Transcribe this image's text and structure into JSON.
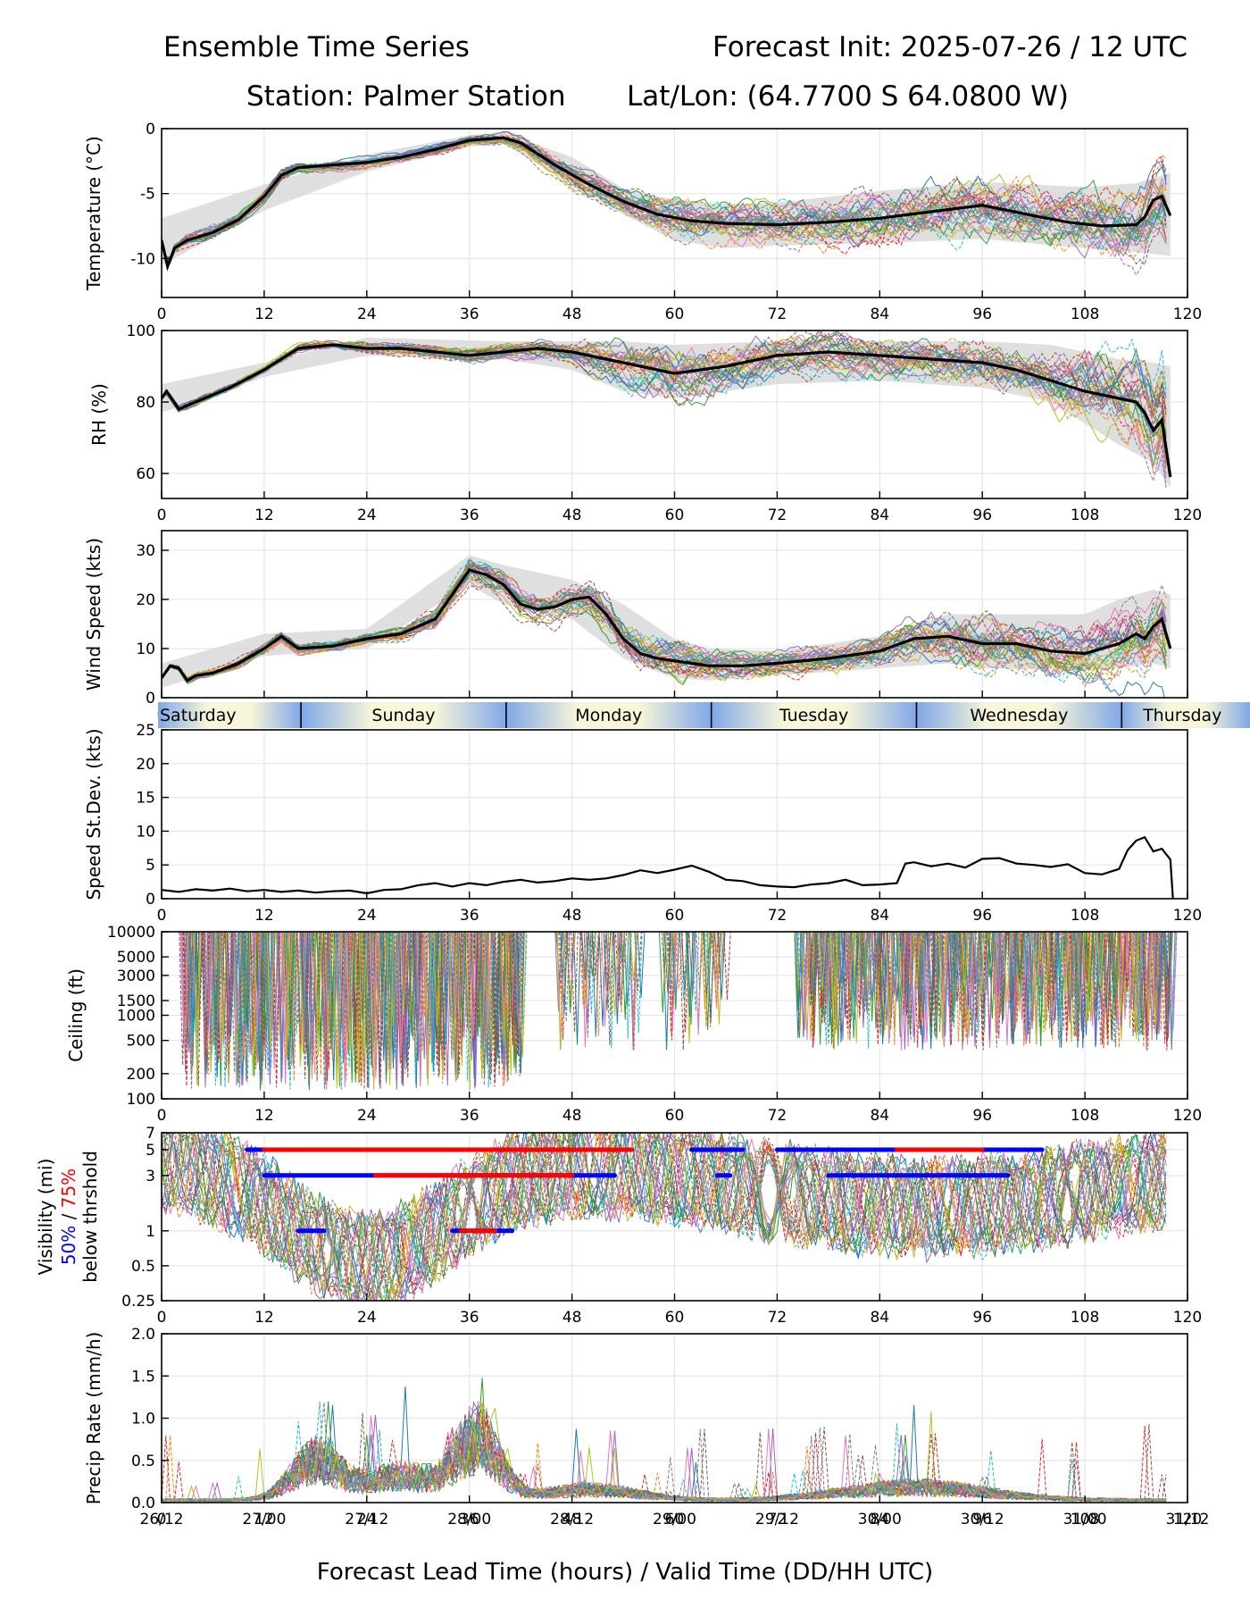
{
  "header": {
    "title_left": "Ensemble Time Series",
    "title_right": "Forecast Init: 2025-07-26 / 12 UTC",
    "station": "Station: Palmer Station",
    "latlon": "Lat/Lon: (64.7700 S 64.0800 W)"
  },
  "x_axis": {
    "ticks": [
      0,
      12,
      24,
      36,
      48,
      60,
      72,
      84,
      96,
      108,
      120
    ],
    "valid_time_labels": [
      "26/12",
      "27/00",
      "27/12",
      "28/00",
      "28/12",
      "29/00",
      "29/12",
      "30/00",
      "30/12",
      "31/00",
      "31/12"
    ],
    "xlabel": "Forecast Lead Time (hours) / Valid Time (DD/HH UTC)",
    "range": [
      0,
      120
    ]
  },
  "day_band": {
    "days": [
      "Saturday",
      "Sunday",
      "Monday",
      "Tuesday",
      "Wednesday",
      "Thursday"
    ],
    "boundaries_hours": [
      16.3,
      40.3,
      64.3,
      88.3,
      112.3
    ]
  },
  "colors": {
    "ensemble_palette": [
      "#1f77b4",
      "#ff7f0e",
      "#2ca02c",
      "#d62728",
      "#9467bd",
      "#8c564b",
      "#e377c2",
      "#7f7f7f",
      "#bcbd22",
      "#17becf"
    ],
    "mean_line": "#000000",
    "spread_fill": "#d9d9d9",
    "vis_50": "#0000ff",
    "vis_75": "#ff0000",
    "day_band_blue": "#7fa8e8",
    "day_band_cream": "#f8f6d8"
  },
  "chart_data": [
    {
      "id": "temperature",
      "type": "line",
      "ylabel": "Temperature (°C)",
      "ylim": [
        -13,
        0
      ],
      "yticks": [
        0,
        -5,
        -10
      ],
      "grid": true,
      "mean": {
        "x": [
          0,
          0.7,
          1.5,
          3,
          6,
          9,
          12,
          14,
          16,
          20,
          24,
          28,
          32,
          36,
          40,
          42,
          46,
          50,
          54,
          58,
          62,
          66,
          72,
          78,
          84,
          90,
          96,
          102,
          106,
          110,
          114,
          115,
          116,
          117,
          118
        ],
        "y": [
          -8.6,
          -10.6,
          -9.2,
          -8.6,
          -8.0,
          -7.0,
          -5.2,
          -3.6,
          -3.0,
          -2.8,
          -2.6,
          -2.2,
          -1.6,
          -0.9,
          -0.7,
          -1.1,
          -2.8,
          -4.3,
          -5.6,
          -6.6,
          -7.1,
          -7.3,
          -7.4,
          -7.2,
          -6.9,
          -6.4,
          -5.9,
          -6.7,
          -7.2,
          -7.5,
          -7.4,
          -6.8,
          -5.5,
          -5.2,
          -6.7
        ]
      },
      "spread": {
        "x": [
          0,
          12,
          24,
          36,
          40,
          48,
          54,
          60,
          66,
          72,
          84,
          96,
          108,
          114,
          118
        ],
        "lower": [
          -10.5,
          -6.3,
          -3.3,
          -1.4,
          -1.2,
          -4.2,
          -6.6,
          -8.6,
          -9.2,
          -9.0,
          -8.8,
          -8.5,
          -9.2,
          -9.5,
          -9.8
        ],
        "upper": [
          -6.9,
          -4.3,
          -2.0,
          -0.5,
          -0.3,
          -2.2,
          -4.6,
          -5.5,
          -5.8,
          -5.7,
          -4.8,
          -4.1,
          -4.5,
          -4.2,
          -3.4
        ]
      }
    },
    {
      "id": "rh",
      "type": "line",
      "ylabel": "RH (%)",
      "ylim": [
        53,
        100
      ],
      "yticks": [
        100,
        80,
        60
      ],
      "grid": true,
      "mean": {
        "x": [
          0,
          0.6,
          2,
          4,
          8,
          12,
          16,
          20,
          24,
          28,
          32,
          36,
          40,
          44,
          48,
          52,
          56,
          60,
          66,
          72,
          78,
          84,
          90,
          96,
          100,
          104,
          108,
          112,
          114,
          115,
          116,
          117,
          118
        ],
        "y": [
          81,
          83,
          78,
          80,
          84,
          89,
          95,
          96,
          95,
          95,
          94,
          93,
          94,
          95,
          94,
          92,
          90,
          88,
          90,
          93,
          94,
          93,
          92,
          91,
          89,
          86,
          83,
          81,
          80,
          77,
          72,
          75,
          59
        ]
      },
      "spread": {
        "x": [
          0,
          12,
          24,
          40,
          48,
          54,
          60,
          72,
          84,
          96,
          104,
          108,
          112,
          116,
          118
        ],
        "lower": [
          77,
          87,
          93,
          92,
          89,
          83,
          81,
          85,
          86,
          84,
          80,
          74,
          68,
          63,
          56
        ],
        "upper": [
          85,
          91,
          98,
          97,
          97,
          97,
          96,
          97,
          97,
          97,
          96,
          94,
          92,
          91,
          90
        ]
      }
    },
    {
      "id": "wind_speed",
      "type": "line",
      "ylabel": "Wind Speed (kts)",
      "ylim": [
        0,
        34
      ],
      "yticks": [
        0,
        10,
        20,
        30
      ],
      "grid": true,
      "mean": {
        "x": [
          0,
          1,
          2,
          3,
          4,
          6,
          9,
          12,
          14,
          16,
          20,
          24,
          28,
          32,
          34,
          36,
          38,
          40,
          42,
          44,
          46,
          48,
          50,
          52,
          54,
          56,
          58,
          60,
          62,
          64,
          68,
          72,
          78,
          84,
          88,
          92,
          96,
          100,
          104,
          108,
          112,
          114,
          115,
          116,
          117,
          118
        ],
        "y": [
          4,
          6.5,
          6,
          3.5,
          4.5,
          5,
          7,
          10,
          12.5,
          10,
          10.5,
          12,
          13,
          16,
          21,
          26,
          25,
          23,
          19,
          18,
          18.5,
          20,
          20.5,
          17,
          12,
          9,
          8,
          7.5,
          7,
          6.5,
          6.5,
          7,
          8,
          9.5,
          12,
          12.5,
          11,
          11,
          9.5,
          9,
          11,
          13,
          12,
          14.5,
          16,
          10
        ]
      },
      "spread": {
        "x": [
          0,
          12,
          24,
          36,
          40,
          48,
          54,
          60,
          64,
          72,
          84,
          92,
          96,
          108,
          112,
          116,
          118
        ],
        "lower": [
          2,
          8.5,
          10,
          23,
          19,
          16,
          8,
          4,
          3.5,
          4.5,
          6,
          7,
          6,
          5.5,
          6,
          7,
          6
        ],
        "upper": [
          7,
          13,
          14,
          29,
          27,
          24,
          19,
          12,
          10,
          9.5,
          12.5,
          17,
          17,
          17,
          20,
          22,
          21
        ]
      }
    },
    {
      "id": "speed_stdev",
      "type": "line",
      "ylabel": "Speed St.Dev. (kts)",
      "ylim": [
        0,
        25
      ],
      "yticks": [
        0,
        5,
        10,
        15,
        20,
        25
      ],
      "grid": true,
      "series": [
        {
          "name": "",
          "x": [
            0,
            2,
            4,
            6,
            8,
            10,
            12,
            14,
            16,
            18,
            20,
            22,
            24,
            26,
            28,
            30,
            32,
            34,
            36,
            38,
            40,
            42,
            44,
            46,
            48,
            50,
            52,
            54,
            56,
            58,
            60,
            62,
            64,
            66,
            68,
            70,
            72,
            74,
            76,
            78,
            80,
            82,
            84,
            86,
            87,
            88,
            90,
            92,
            94,
            96,
            98,
            100,
            102,
            104,
            106,
            108,
            110,
            112,
            113,
            114,
            115,
            116,
            117,
            118,
            118.3
          ],
          "y": [
            1.3,
            1.0,
            1.4,
            1.2,
            1.5,
            1.1,
            1.3,
            1.0,
            1.2,
            0.9,
            1.1,
            1.2,
            0.8,
            1.3,
            1.4,
            2.0,
            2.3,
            1.8,
            2.3,
            2.0,
            2.5,
            2.8,
            2.4,
            2.6,
            3.0,
            2.8,
            3.0,
            3.5,
            4.2,
            3.8,
            4.3,
            4.9,
            4.0,
            2.8,
            2.6,
            2.0,
            1.8,
            1.7,
            2.1,
            2.3,
            2.8,
            2.0,
            2.1,
            2.3,
            5.2,
            5.4,
            4.8,
            5.2,
            4.6,
            5.9,
            6.0,
            5.2,
            5.0,
            4.7,
            5.1,
            3.8,
            3.6,
            4.4,
            7.2,
            8.6,
            9.1,
            7.0,
            7.4,
            5.8,
            0
          ]
        }
      ]
    },
    {
      "id": "ceiling",
      "type": "line",
      "ylabel": "Ceiling (ft)",
      "yscale": "log",
      "ylim": [
        100,
        10000
      ],
      "yticks": [
        100,
        200,
        500,
        1000,
        1500,
        3000,
        5000,
        10000
      ],
      "grid": true,
      "note_ranges": [
        [
          2,
          42
        ],
        [
          46,
          56
        ],
        [
          58,
          66
        ],
        [
          74,
          118
        ]
      ]
    },
    {
      "id": "visibility",
      "type": "line",
      "ylabel": "Visibility (mi)",
      "ylabel_legend_50": "50%",
      "ylabel_legend_sep": " / ",
      "ylabel_legend_75": "75%",
      "ylabel_sub": "below thrshold",
      "yscale": "log",
      "ylim": [
        0.25,
        7
      ],
      "yticks": [
        0.25,
        0.5,
        1,
        3,
        5,
        7
      ],
      "grid": true,
      "threshold_bars": [
        {
          "level": 5,
          "color": "blue",
          "x0": 10,
          "x1": 55
        },
        {
          "level": 5,
          "color": "red",
          "x0": 12,
          "x1": 55
        },
        {
          "level": 5,
          "color": "blue",
          "x0": 62,
          "x1": 68
        },
        {
          "level": 5,
          "color": "blue",
          "x0": 72,
          "x1": 103
        },
        {
          "level": 5,
          "color": "red",
          "x0": 86,
          "x1": 96
        },
        {
          "level": 3,
          "color": "blue",
          "x0": 12,
          "x1": 53
        },
        {
          "level": 3,
          "color": "red",
          "x0": 25,
          "x1": 48
        },
        {
          "level": 3,
          "color": "blue",
          "x0": 65,
          "x1": 66.5
        },
        {
          "level": 3,
          "color": "blue",
          "x0": 78,
          "x1": 99
        },
        {
          "level": 1,
          "color": "blue",
          "x0": 16,
          "x1": 19
        },
        {
          "level": 1,
          "color": "blue",
          "x0": 34,
          "x1": 41
        },
        {
          "level": 1,
          "color": "red",
          "x0": 35,
          "x1": 39
        }
      ]
    },
    {
      "id": "precip",
      "type": "line",
      "ylabel": "Precip Rate (mm/h)",
      "ylim": [
        0,
        2.0
      ],
      "yticks": [
        0.0,
        0.5,
        1.0,
        1.5,
        2.0
      ],
      "grid": true
    }
  ]
}
